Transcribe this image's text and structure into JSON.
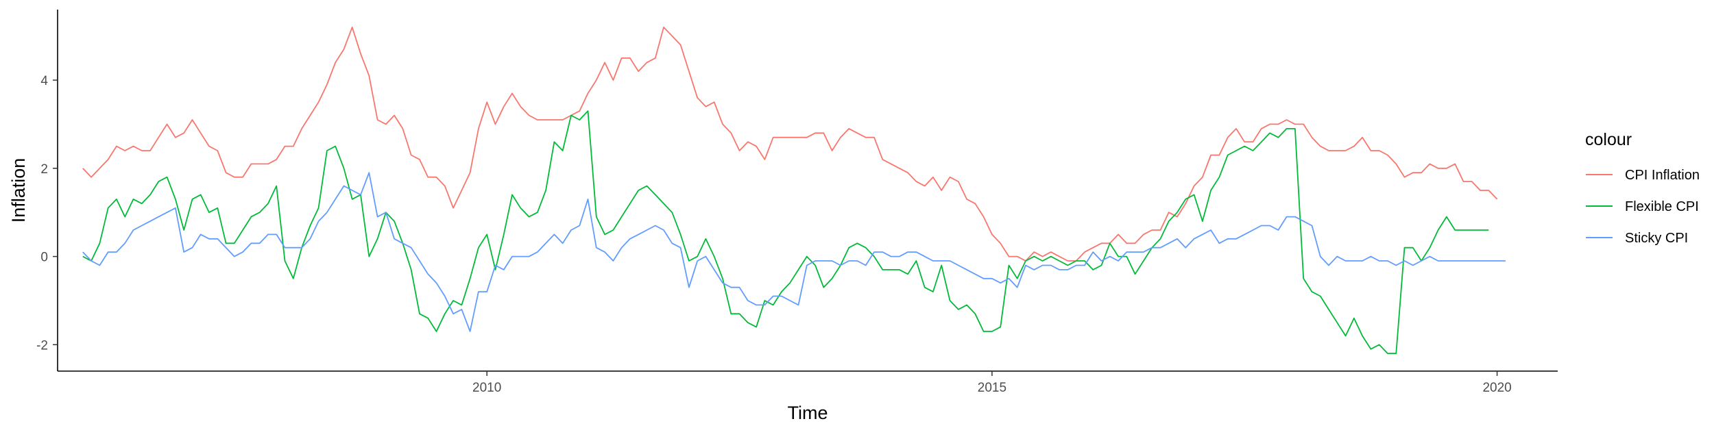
{
  "chart_data": {
    "type": "line",
    "title": "",
    "xlabel": "Time",
    "ylabel": "Inflation",
    "xlim": [
      2005.75,
      2020.6
    ],
    "ylim": [
      -2.6,
      5.6
    ],
    "x_ticks": [
      2010,
      2015,
      2020
    ],
    "y_ticks": [
      -2,
      0,
      2,
      4
    ],
    "x_tick_labels": [
      "2010",
      "2015",
      "2020"
    ],
    "y_tick_labels": [
      "-2",
      "0",
      "2",
      "4"
    ],
    "grid": false,
    "legend": {
      "title": "colour",
      "position": "right"
    },
    "x_start": 2006.0,
    "x_step": 0.08333333,
    "series": [
      {
        "name": "CPI Inflation",
        "color": "#F8766D",
        "values": [
          2.0,
          1.8,
          2.0,
          2.2,
          2.5,
          2.4,
          2.5,
          2.4,
          2.4,
          2.7,
          3.0,
          2.7,
          2.8,
          3.1,
          2.8,
          2.5,
          2.4,
          1.9,
          1.8,
          1.8,
          2.1,
          2.1,
          2.1,
          2.2,
          2.5,
          2.5,
          2.9,
          3.2,
          3.5,
          3.9,
          4.4,
          4.7,
          5.2,
          4.6,
          4.1,
          3.1,
          3.0,
          3.2,
          2.9,
          2.3,
          2.2,
          1.8,
          1.8,
          1.6,
          1.1,
          1.5,
          1.9,
          2.9,
          3.5,
          3.0,
          3.4,
          3.7,
          3.4,
          3.2,
          3.1,
          3.1,
          3.1,
          3.1,
          3.2,
          3.3,
          3.7,
          4.0,
          4.4,
          4.0,
          4.5,
          4.5,
          4.2,
          4.4,
          4.5,
          5.2,
          5.0,
          4.8,
          4.2,
          3.6,
          3.4,
          3.5,
          3.0,
          2.8,
          2.4,
          2.6,
          2.5,
          2.2,
          2.7,
          2.7,
          2.7,
          2.7,
          2.7,
          2.8,
          2.8,
          2.4,
          2.7,
          2.9,
          2.8,
          2.7,
          2.7,
          2.2,
          2.1,
          2.0,
          1.9,
          1.7,
          1.6,
          1.8,
          1.5,
          1.8,
          1.7,
          1.3,
          1.2,
          0.9,
          0.5,
          0.3,
          0.0,
          0.0,
          -0.1,
          0.1,
          0.0,
          0.1,
          0.0,
          -0.1,
          -0.1,
          0.1,
          0.2,
          0.3,
          0.3,
          0.5,
          0.3,
          0.3,
          0.5,
          0.6,
          0.6,
          1.0,
          0.9,
          1.2,
          1.6,
          1.8,
          2.3,
          2.3,
          2.7,
          2.9,
          2.6,
          2.6,
          2.9,
          3.0,
          3.0,
          3.1,
          3.0,
          3.0,
          2.7,
          2.5,
          2.4,
          2.4,
          2.4,
          2.5,
          2.7,
          2.4,
          2.4,
          2.3,
          2.1,
          1.8,
          1.9,
          1.9,
          2.1,
          2.0,
          2.0,
          2.1,
          1.7,
          1.7,
          1.5,
          1.5,
          1.3
        ]
      },
      {
        "name": "Flexible CPI",
        "color": "#00BA38",
        "values": [
          0.0,
          -0.1,
          0.3,
          1.1,
          1.3,
          0.9,
          1.3,
          1.2,
          1.4,
          1.7,
          1.8,
          1.3,
          0.6,
          1.3,
          1.4,
          1.0,
          1.1,
          0.3,
          0.3,
          0.6,
          0.9,
          1.0,
          1.2,
          1.6,
          -0.1,
          -0.5,
          0.2,
          0.7,
          1.1,
          2.4,
          2.5,
          2.0,
          1.3,
          1.4,
          0.0,
          0.4,
          1.0,
          0.8,
          0.3,
          -0.3,
          -1.3,
          -1.4,
          -1.7,
          -1.3,
          -1.0,
          -1.1,
          -0.5,
          0.2,
          0.5,
          -0.3,
          0.5,
          1.4,
          1.1,
          0.9,
          1.0,
          1.5,
          2.6,
          2.4,
          3.2,
          3.1,
          3.3,
          0.9,
          0.5,
          0.6,
          0.9,
          1.2,
          1.5,
          1.6,
          1.4,
          1.2,
          1.0,
          0.5,
          -0.1,
          0.0,
          0.4,
          0.0,
          -0.5,
          -1.3,
          -1.3,
          -1.5,
          -1.6,
          -1.0,
          -1.1,
          -0.8,
          -0.6,
          -0.3,
          0.0,
          -0.2,
          -0.7,
          -0.5,
          -0.2,
          0.2,
          0.3,
          0.2,
          0.0,
          -0.3,
          -0.3,
          -0.3,
          -0.4,
          -0.1,
          -0.7,
          -0.8,
          -0.2,
          -1.0,
          -1.2,
          -1.1,
          -1.3,
          -1.7,
          -1.7,
          -1.6,
          -0.2,
          -0.5,
          -0.1,
          0.0,
          -0.1,
          0.0,
          -0.1,
          -0.2,
          -0.1,
          -0.1,
          -0.3,
          -0.2,
          0.3,
          0.0,
          0.0,
          -0.4,
          -0.1,
          0.2,
          0.4,
          0.8,
          1.0,
          1.3,
          1.4,
          0.8,
          1.5,
          1.8,
          2.3,
          2.4,
          2.5,
          2.4,
          2.6,
          2.8,
          2.7,
          2.9,
          2.9,
          -0.5,
          -0.8,
          -0.9,
          -1.2,
          -1.5,
          -1.8,
          -1.4,
          -1.8,
          -2.1,
          -2.0,
          -2.2,
          -2.2,
          0.2,
          0.2,
          -0.1,
          0.2,
          0.6,
          0.9,
          0.6,
          0.6,
          0.6,
          0.6,
          0.6
        ]
      },
      {
        "name": "Sticky CPI",
        "color": "#619CFF",
        "values": [
          0.1,
          -0.1,
          -0.2,
          0.1,
          0.1,
          0.3,
          0.6,
          0.7,
          0.8,
          0.9,
          1.0,
          1.1,
          0.1,
          0.2,
          0.5,
          0.4,
          0.4,
          0.2,
          0.0,
          0.1,
          0.3,
          0.3,
          0.5,
          0.5,
          0.2,
          0.2,
          0.2,
          0.4,
          0.8,
          1.0,
          1.3,
          1.6,
          1.5,
          1.4,
          1.9,
          0.9,
          1.0,
          0.4,
          0.3,
          0.2,
          -0.1,
          -0.4,
          -0.6,
          -0.9,
          -1.3,
          -1.2,
          -1.7,
          -0.8,
          -0.8,
          -0.2,
          -0.3,
          0.0,
          0.0,
          0.0,
          0.1,
          0.3,
          0.5,
          0.3,
          0.6,
          0.7,
          1.3,
          0.2,
          0.1,
          -0.1,
          0.2,
          0.4,
          0.5,
          0.6,
          0.7,
          0.6,
          0.3,
          0.2,
          -0.7,
          -0.1,
          0.0,
          -0.3,
          -0.6,
          -0.7,
          -0.7,
          -1.0,
          -1.1,
          -1.1,
          -0.9,
          -0.9,
          -1.0,
          -1.1,
          -0.2,
          -0.1,
          -0.1,
          -0.1,
          -0.2,
          -0.1,
          -0.1,
          -0.2,
          0.1,
          0.1,
          0.0,
          0.0,
          0.1,
          0.1,
          0.0,
          -0.1,
          -0.1,
          -0.1,
          -0.2,
          -0.3,
          -0.4,
          -0.5,
          -0.5,
          -0.6,
          -0.5,
          -0.7,
          -0.2,
          -0.3,
          -0.2,
          -0.2,
          -0.3,
          -0.3,
          -0.2,
          -0.2,
          0.1,
          -0.1,
          0.0,
          -0.1,
          0.1,
          0.1,
          0.1,
          0.2,
          0.2,
          0.3,
          0.4,
          0.2,
          0.4,
          0.5,
          0.6,
          0.3,
          0.4,
          0.4,
          0.5,
          0.6,
          0.7,
          0.7,
          0.6,
          0.9,
          0.9,
          0.8,
          0.7,
          0.0,
          -0.2,
          0.0,
          -0.1,
          -0.1,
          -0.1,
          0.0,
          -0.1,
          -0.1,
          -0.2,
          -0.1,
          -0.2,
          -0.1,
          0.0,
          -0.1,
          -0.1,
          -0.1,
          -0.1,
          -0.1,
          -0.1,
          -0.1,
          -0.1,
          -0.1
        ]
      }
    ]
  }
}
